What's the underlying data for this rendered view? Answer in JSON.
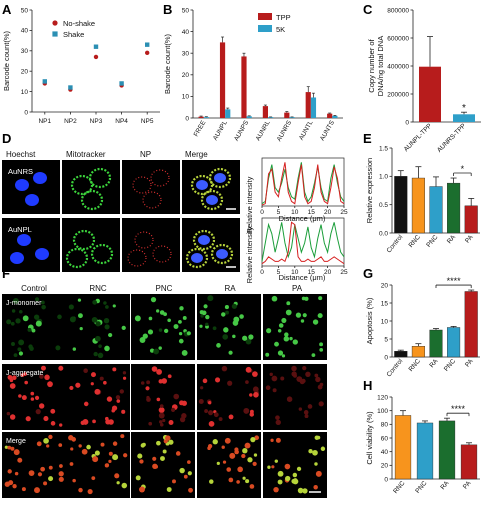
{
  "colors": {
    "red": "#b71c1c",
    "blue": "#2e9fc9",
    "orange": "#f7941d",
    "green": "#1b6e2e",
    "black": "#111111",
    "blue_sq": "#2b8fb3"
  },
  "panels": {
    "A": {
      "label": "A"
    },
    "B": {
      "label": "B"
    },
    "C": {
      "label": "C"
    },
    "D": {
      "label": "D",
      "col_labels": [
        "Hoechst",
        "Mitotracker",
        "NP",
        "Merge"
      ],
      "row_labels": [
        "AuNRS",
        "AuNPL"
      ],
      "profile_ylabel": "Relative intensity",
      "profile_xlabel": "Distance (μm)",
      "profile_xticks": [
        "0",
        "5",
        "10",
        "15",
        "20",
        "25"
      ]
    },
    "E": {
      "label": "E"
    },
    "F": {
      "label": "F",
      "col_labels": [
        "Control",
        "RNC",
        "PNC",
        "RA",
        "PA"
      ],
      "row_labels": [
        "J-monomer",
        "J-aggregate",
        "Merge"
      ]
    },
    "G": {
      "label": "G"
    },
    "H": {
      "label": "H"
    }
  },
  "chart_data": [
    {
      "id": "A",
      "type": "scatter",
      "ylabel": "Barcode count(%)",
      "ylim": [
        0,
        50
      ],
      "yticks": [
        0,
        10,
        20,
        30,
        40,
        50
      ],
      "categories": [
        "NP1",
        "NP2",
        "NP3",
        "NP4",
        "NP5"
      ],
      "series": [
        {
          "name": "No-shake",
          "color": "#b71c1c",
          "values": [
            14,
            11,
            27,
            13,
            29
          ]
        },
        {
          "name": "Shake",
          "color": "#2b8fb3",
          "values": [
            15,
            12,
            32,
            14,
            33
          ]
        }
      ]
    },
    {
      "id": "B",
      "type": "bar",
      "ylabel": "Barcode count(%)",
      "ylim": [
        0,
        50
      ],
      "yticks": [
        0,
        10,
        20,
        30,
        40,
        50
      ],
      "categories": [
        "FREE",
        "AUNPL",
        "AUNPS",
        "AUNRL",
        "AUNRS",
        "AUNTL",
        "AUNTS"
      ],
      "series": [
        {
          "name": "TPP",
          "color": "#b71c1c",
          "values": [
            0.6,
            35,
            28.5,
            5.5,
            2.5,
            12,
            2
          ]
        },
        {
          "name": "5K",
          "color": "#2e9fc9",
          "values": [
            0.4,
            4,
            0.8,
            0.4,
            0.4,
            9.5,
            1
          ]
        }
      ],
      "errors": [
        [
          0.3,
          2.5,
          1.5,
          0.5,
          0.5,
          2.5,
          0.3
        ],
        [
          0.2,
          0.6,
          0.2,
          0.1,
          0.1,
          2,
          0.2
        ]
      ]
    },
    {
      "id": "C",
      "type": "bar",
      "ylabel": "Copy number of DNA/ng total DNA",
      "ylim": [
        0,
        800000
      ],
      "yticks": [
        "0",
        "200000",
        "400000",
        "600000",
        "800000"
      ],
      "categories": [
        "AUNPL-TPP",
        "AUNRS-TPP"
      ],
      "values": [
        395000,
        55000
      ],
      "errors": [
        215000,
        15000
      ],
      "colors": [
        "#b71c1c",
        "#2e9fc9"
      ],
      "annotation": "*"
    },
    {
      "id": "D1",
      "type": "line",
      "xlim": [
        0,
        25
      ],
      "series": [
        {
          "color": "#1b9e3a",
          "x": [
            0,
            1,
            2,
            3,
            4,
            5,
            6,
            7,
            8,
            9,
            10,
            11,
            12,
            13,
            14,
            15,
            16,
            17,
            18,
            19,
            20,
            21,
            22,
            23,
            24,
            25
          ],
          "y": [
            0.05,
            0.1,
            0.6,
            0.9,
            0.4,
            0.3,
            0.5,
            0.8,
            0.4,
            0.2,
            0.15,
            0.6,
            0.95,
            0.3,
            0.1,
            0.2,
            0.5,
            0.85,
            0.4,
            0.15,
            0.1,
            0.6,
            0.9,
            0.5,
            0.2,
            0.1
          ]
        },
        {
          "color": "#d62020",
          "x": [
            0,
            1,
            2,
            3,
            4,
            5,
            6,
            7,
            8,
            9,
            10,
            11,
            12,
            13,
            14,
            15,
            16,
            17,
            18,
            19,
            20,
            21,
            22,
            23,
            24,
            25
          ],
          "y": [
            0.02,
            0.05,
            0.7,
            0.8,
            0.3,
            0.2,
            0.6,
            0.95,
            0.3,
            0.1,
            0.05,
            0.5,
            0.9,
            0.2,
            0.05,
            0.1,
            0.4,
            0.9,
            0.3,
            0.1,
            0.05,
            0.4,
            0.85,
            0.6,
            0.1,
            0.05
          ]
        }
      ]
    },
    {
      "id": "D2",
      "type": "line",
      "xlim": [
        0,
        25
      ],
      "series": [
        {
          "color": "#1b9e3a",
          "x": [
            0,
            1,
            2,
            3,
            4,
            5,
            6,
            7,
            8,
            9,
            10,
            11,
            12,
            13,
            14,
            15,
            16,
            17,
            18,
            19,
            20,
            21,
            22,
            23,
            24,
            25
          ],
          "y": [
            0.1,
            0.5,
            0.9,
            0.7,
            0.3,
            0.6,
            0.95,
            0.5,
            0.2,
            0.4,
            0.9,
            0.6,
            0.3,
            0.5,
            0.85,
            0.4,
            0.2,
            0.6,
            0.9,
            0.5,
            0.3,
            0.7,
            0.95,
            0.6,
            0.3,
            0.2
          ]
        },
        {
          "color": "#d62020",
          "x": [
            0,
            1,
            2,
            3,
            4,
            5,
            6,
            7,
            8,
            9,
            10,
            11,
            12,
            13,
            14,
            15,
            16,
            17,
            18,
            19,
            20,
            21,
            22,
            23,
            24,
            25
          ],
          "y": [
            0.05,
            0.1,
            0.2,
            0.15,
            0.1,
            0.1,
            0.15,
            0.1,
            0.3,
            0.95,
            0.9,
            0.2,
            0.1,
            0.1,
            0.15,
            0.1,
            0.1,
            0.15,
            0.2,
            0.1,
            0.1,
            0.15,
            0.2,
            0.15,
            0.1,
            0.05
          ]
        }
      ]
    },
    {
      "id": "E",
      "type": "bar",
      "ylabel": "Relative expression",
      "ylim": [
        0,
        1.5
      ],
      "yticks": [
        "0.0",
        "0.5",
        "1.0",
        "1.5"
      ],
      "categories": [
        "Control",
        "RNC",
        "PNC",
        "RA",
        "PA"
      ],
      "values": [
        1.0,
        0.97,
        0.82,
        0.88,
        0.48
      ],
      "errors": [
        0.1,
        0.2,
        0.17,
        0.09,
        0.13
      ],
      "colors": [
        "#111111",
        "#f7941d",
        "#2e9fc9",
        "#1b6e2e",
        "#b71c1c"
      ],
      "annotation": "*"
    },
    {
      "id": "G",
      "type": "bar",
      "ylabel": "Apoptosis (%)",
      "ylim": [
        0,
        20
      ],
      "yticks": [
        "0",
        "5",
        "10",
        "15",
        "20"
      ],
      "categories": [
        "Control",
        "RNC",
        "RA",
        "PNC",
        "PA"
      ],
      "values": [
        1.6,
        3.0,
        7.5,
        8.2,
        18.2
      ],
      "errors": [
        0.3,
        0.7,
        0.4,
        0.3,
        0.4
      ],
      "colors": [
        "#111111",
        "#f7941d",
        "#1b6e2e",
        "#2e9fc9",
        "#b71c1c"
      ],
      "annotation": "****"
    },
    {
      "id": "H",
      "type": "bar",
      "ylabel": "Cell viability (%)",
      "ylim": [
        0,
        120
      ],
      "yticks": [
        "0",
        "20",
        "40",
        "60",
        "80",
        "100",
        "120"
      ],
      "categories": [
        "RNC",
        "PNC",
        "RA",
        "PA"
      ],
      "values": [
        93,
        82,
        85,
        50
      ],
      "errors": [
        7,
        3,
        4,
        3
      ],
      "colors": [
        "#f7941d",
        "#2e9fc9",
        "#1b6e2e",
        "#b71c1c"
      ],
      "annotation": "****"
    }
  ]
}
